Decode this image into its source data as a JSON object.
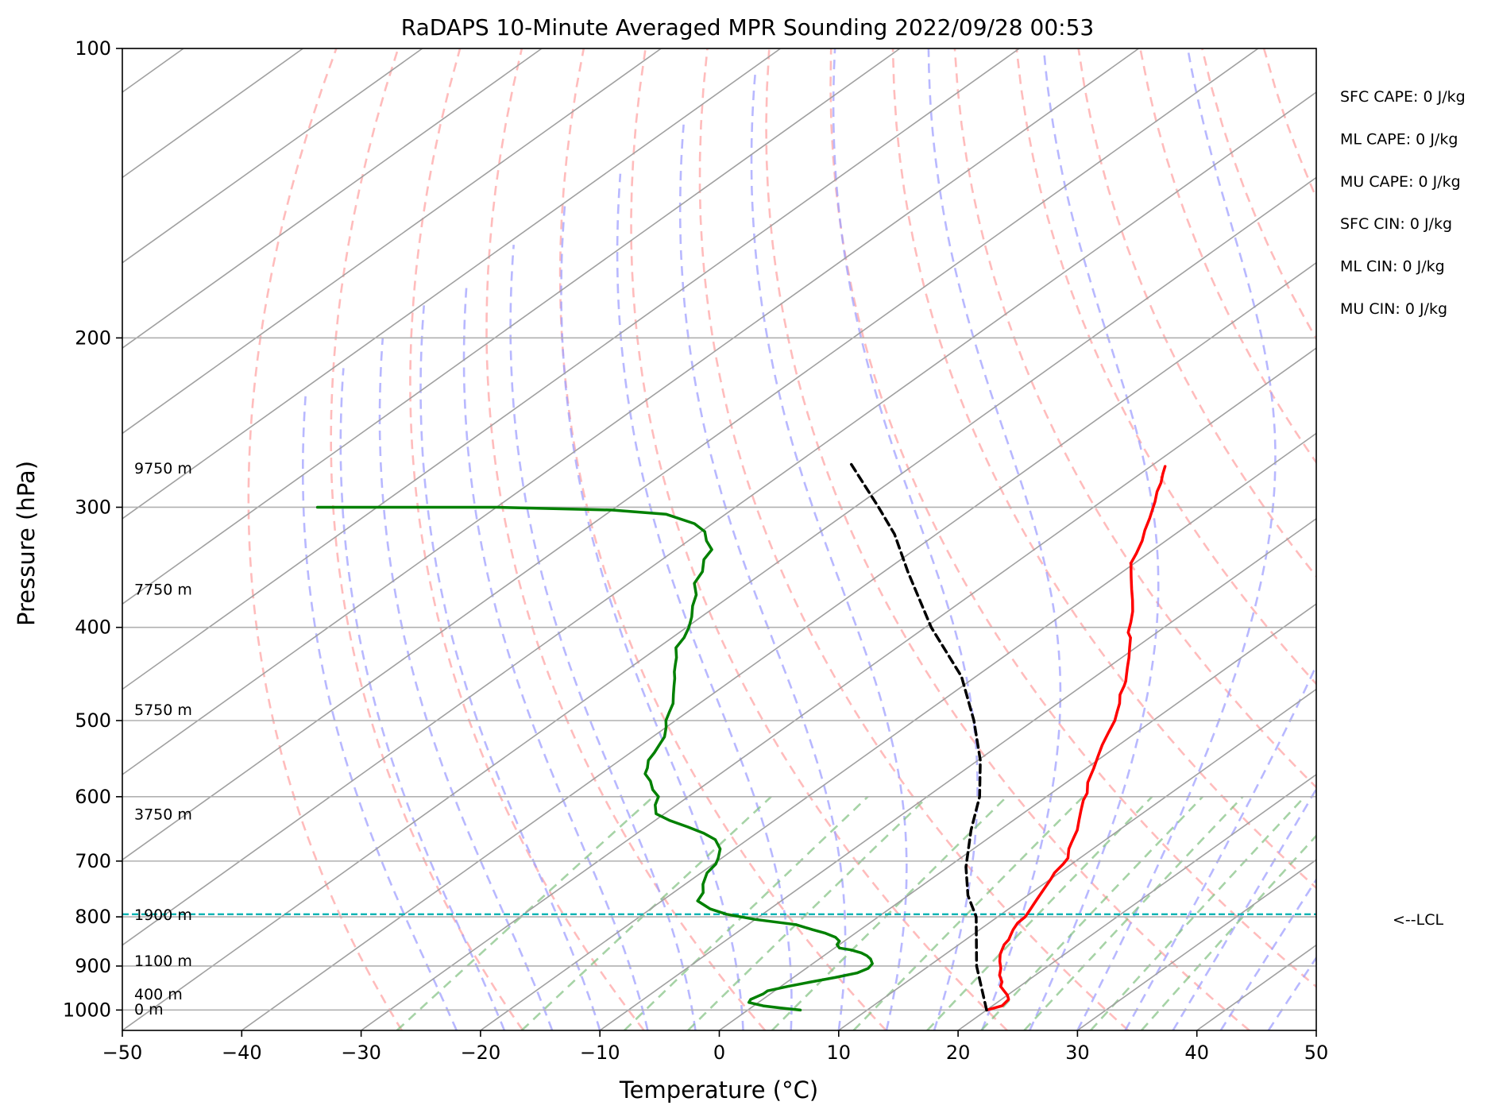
{
  "chart_data": {
    "type": "skew-t",
    "title": "RaDAPS 10-Minute Averaged MPR Sounding 2022/09/28 00:53",
    "xlabel": "Temperature (°C)",
    "ylabel": "Pressure (hPa)",
    "xlim": [
      -50,
      50
    ],
    "ylim": [
      1050,
      100
    ],
    "y_scale": "log",
    "grid": true,
    "x_ticks": [
      "−50",
      "−40",
      "−30",
      "−20",
      "−10",
      "0",
      "10",
      "20",
      "30",
      "40",
      "50"
    ],
    "x_tick_values": [
      -50,
      -40,
      -30,
      -20,
      -10,
      0,
      10,
      20,
      30,
      40,
      50
    ],
    "y_ticks": [
      "100",
      "200",
      "300",
      "400",
      "500",
      "600",
      "700",
      "800",
      "900",
      "1000"
    ],
    "y_tick_values": [
      100,
      200,
      300,
      400,
      500,
      600,
      700,
      800,
      900,
      1000
    ],
    "series": [
      {
        "color": "#ff0000",
        "points": [
          [
            20.0,
            1000
          ],
          [
            20.8,
            990
          ],
          [
            20.6,
            975
          ],
          [
            20.0,
            965
          ],
          [
            19.2,
            955
          ],
          [
            18.4,
            945
          ],
          [
            18.0,
            935
          ],
          [
            17.0,
            920
          ],
          [
            16.3,
            905
          ],
          [
            15.4,
            890
          ],
          [
            14.6,
            875
          ],
          [
            14.2,
            865
          ],
          [
            13.8,
            855
          ],
          [
            13.6,
            845
          ],
          [
            13.2,
            835
          ],
          [
            12.8,
            825
          ],
          [
            12.4,
            812
          ],
          [
            12.3,
            800
          ],
          [
            12.0,
            790
          ],
          [
            11.5,
            775
          ],
          [
            11.0,
            760
          ],
          [
            10.5,
            745
          ],
          [
            10.0,
            730
          ],
          [
            9.6,
            720
          ],
          [
            9.3,
            705
          ],
          [
            9.0,
            695
          ],
          [
            8.0,
            680
          ],
          [
            7.5,
            670
          ],
          [
            7.0,
            660
          ],
          [
            6.5,
            650
          ],
          [
            5.5,
            635
          ],
          [
            4.5,
            620
          ],
          [
            3.5,
            605
          ],
          [
            3.0,
            595
          ],
          [
            1.8,
            580
          ],
          [
            1.2,
            570
          ],
          [
            0.6,
            560
          ],
          [
            -0.4,
            545
          ],
          [
            -1.4,
            530
          ],
          [
            -2.3,
            515
          ],
          [
            -3.2,
            500
          ],
          [
            -4.0,
            490
          ],
          [
            -4.8,
            480
          ],
          [
            -5.8,
            470
          ],
          [
            -6.5,
            460
          ],
          [
            -6.9,
            455
          ],
          [
            -7.6,
            448
          ],
          [
            -8.4,
            440
          ],
          [
            -9.4,
            430
          ],
          [
            -10.5,
            420
          ],
          [
            -11.6,
            410
          ],
          [
            -12.4,
            405
          ],
          [
            -13.4,
            395
          ],
          [
            -14.5,
            385
          ],
          [
            -15.8,
            375
          ],
          [
            -17.2,
            365
          ],
          [
            -18.6,
            355
          ],
          [
            -20.3,
            343
          ],
          [
            -21.0,
            335
          ],
          [
            -22.0,
            325
          ],
          [
            -23.0,
            317
          ],
          [
            -24.0,
            308
          ],
          [
            -25.0,
            300
          ],
          [
            -25.5,
            296
          ],
          [
            -26.5,
            289
          ],
          [
            -27.2,
            283
          ],
          [
            -28.1,
            277
          ],
          [
            -28.8,
            272
          ]
        ]
      },
      {
        "color": "#008000",
        "points": [
          [
            4.4,
            1000
          ],
          [
            2.5,
            995
          ],
          [
            0.8,
            990
          ],
          [
            -0.8,
            982
          ],
          [
            -1.0,
            975
          ],
          [
            -0.8,
            968
          ],
          [
            -0.6,
            962
          ],
          [
            -0.6,
            955
          ],
          [
            0.6,
            945
          ],
          [
            2.0,
            935
          ],
          [
            3.5,
            925
          ],
          [
            4.8,
            915
          ],
          [
            5.2,
            905
          ],
          [
            5.0,
            895
          ],
          [
            4.3,
            885
          ],
          [
            3.6,
            878
          ],
          [
            2.8,
            872
          ],
          [
            1.6,
            866
          ],
          [
            0.4,
            862
          ],
          [
            -0.2,
            855
          ],
          [
            -0.4,
            848
          ],
          [
            -1.2,
            840
          ],
          [
            -2.5,
            832
          ],
          [
            -4.0,
            825
          ],
          [
            -6.0,
            815
          ],
          [
            -10.0,
            805
          ],
          [
            -13.0,
            795
          ],
          [
            -15.0,
            785
          ],
          [
            -17.0,
            770
          ],
          [
            -17.5,
            755
          ],
          [
            -18.5,
            740
          ],
          [
            -19.5,
            720
          ],
          [
            -19.8,
            705
          ],
          [
            -20.3,
            695
          ],
          [
            -21.2,
            680
          ],
          [
            -22.2,
            670
          ],
          [
            -22.7,
            665
          ],
          [
            -24.4,
            655
          ],
          [
            -26.5,
            645
          ],
          [
            -28.8,
            635
          ],
          [
            -30.7,
            625
          ],
          [
            -31.8,
            612
          ],
          [
            -32.5,
            600
          ],
          [
            -33.8,
            590
          ],
          [
            -35.0,
            578
          ],
          [
            -36.3,
            568
          ],
          [
            -36.8,
            560
          ],
          [
            -37.6,
            550
          ],
          [
            -38.0,
            540
          ],
          [
            -38.5,
            530
          ],
          [
            -39.0,
            520
          ],
          [
            -40.0,
            508
          ],
          [
            -40.8,
            500
          ],
          [
            -41.5,
            490
          ],
          [
            -42.2,
            480
          ],
          [
            -43.2,
            470
          ],
          [
            -44.2,
            460
          ],
          [
            -45.0,
            452
          ],
          [
            -45.8,
            445
          ],
          [
            -46.6,
            437
          ],
          [
            -47.3,
            430
          ],
          [
            -48.5,
            420
          ],
          [
            -49.0,
            410
          ],
          [
            -49.8,
            400
          ],
          [
            -50.8,
            390
          ],
          [
            -52.0,
            380
          ],
          [
            -53.0,
            370
          ],
          [
            -54.5,
            360
          ],
          [
            -55.2,
            350
          ],
          [
            -56.5,
            340
          ],
          [
            -57.0,
            332
          ],
          [
            -58.5,
            325
          ],
          [
            -59.7,
            318
          ],
          [
            -61.5,
            312
          ],
          [
            -65.0,
            305
          ],
          [
            -70.0,
            302
          ],
          [
            -80.0,
            300
          ],
          [
            -95.0,
            300
          ]
        ]
      },
      {
        "color": "#000000",
        "dash": "dashed",
        "points": [
          [
            20.0,
            1000
          ],
          [
            14.0,
            900
          ],
          [
            8.2,
            800
          ],
          [
            5.0,
            760
          ],
          [
            1.5,
            710
          ],
          [
            -2.4,
            650
          ],
          [
            -5.6,
            600
          ],
          [
            -9.8,
            550
          ],
          [
            -15.0,
            500
          ],
          [
            -21.2,
            450
          ],
          [
            -29.5,
            400
          ],
          [
            -38.0,
            350
          ],
          [
            -43.5,
            320
          ],
          [
            -48.0,
            300
          ],
          [
            -55.5,
            270
          ]
        ]
      }
    ],
    "height_labels": [
      "9750 m",
      "7750 m",
      "5750 m",
      "3750 m",
      "1900 m",
      "1100 m",
      "400 m",
      "0 m"
    ],
    "height_label_pressures": [
      273,
      365,
      487,
      625,
      795,
      888,
      962,
      997
    ],
    "lcl": {
      "label": "<--LCL",
      "pressure": 795,
      "color": "#00b3b3"
    },
    "indices": [
      "SFC CAPE: 0 J/kg",
      "ML CAPE: 0 J/kg",
      "MU CAPE: 0 J/kg",
      "SFC CIN: 0 J/kg",
      "ML CIN: 0 J/kg",
      "MU CIN: 0 J/kg"
    ],
    "background_lines": {
      "isotherms_color": "#a0a0a0",
      "dry_adiabats_color": "#ffa0a0",
      "moist_adiabats_color": "#a0a0ff",
      "mixing_ratio_color": "#80c080"
    }
  }
}
